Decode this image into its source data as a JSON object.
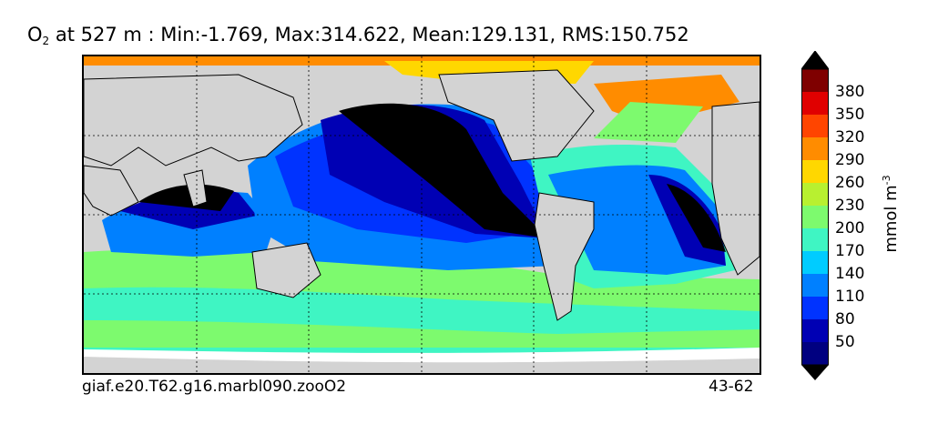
{
  "title": {
    "variable": "O",
    "subscript": "2",
    "text": " at 527 m : Min:-1.769, Max:314.622, Mean:129.131, RMS:150.752"
  },
  "footer": {
    "case_name": "giaf.e20.T62.g16.marbl090.zooO2",
    "years": "43-62"
  },
  "colorbar": {
    "unit": "mmol m",
    "unit_exponent": "-3",
    "levels": [
      {
        "value": "380",
        "color": "#7f0000"
      },
      {
        "value": "350",
        "color": "#e00000"
      },
      {
        "value": "320",
        "color": "#ff4500"
      },
      {
        "value": "290",
        "color": "#ff8c00"
      },
      {
        "value": "260",
        "color": "#ffd700"
      },
      {
        "value": "230",
        "color": "#b8f030"
      },
      {
        "value": "200",
        "color": "#7dfa6e"
      },
      {
        "value": "170",
        "color": "#3ff5c3"
      },
      {
        "value": "140",
        "color": "#00ccff"
      },
      {
        "value": "110",
        "color": "#0080ff"
      },
      {
        "value": "80",
        "color": "#0033ff"
      },
      {
        "value": "50",
        "color": "#0000b4"
      }
    ],
    "under_color": "#000080",
    "over_color": "#000000"
  },
  "map": {
    "land_color": "#d3d3d3",
    "grid": "dotted"
  }
}
